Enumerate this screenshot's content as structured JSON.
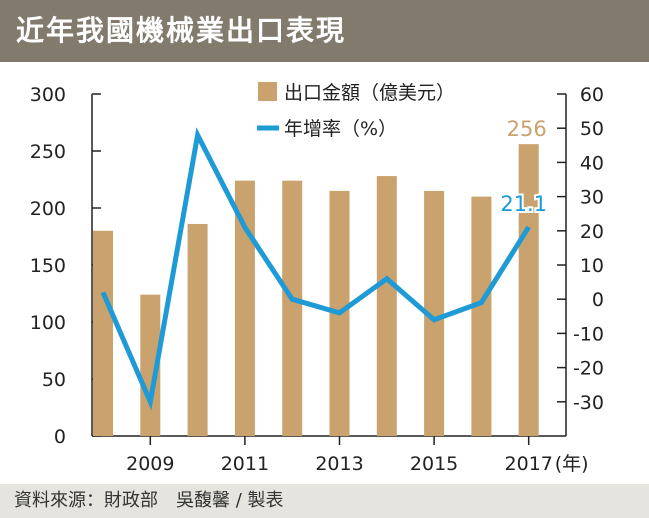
{
  "title": "近年我國機械業出口表現",
  "source": "資料來源：財政部　吳馥馨 / 製表",
  "colors": {
    "bar": "#c9a26e",
    "line": "#1e9ad6",
    "title_bg": "#837a6e",
    "footer_bg": "#e5e4df"
  },
  "chart_data": {
    "type": "bar+line",
    "x": [
      2008,
      2009,
      2010,
      2011,
      2012,
      2013,
      2014,
      2015,
      2016,
      2017
    ],
    "x_tick_labels": [
      "2009",
      "2011",
      "2013",
      "2015",
      "2017"
    ],
    "x_tick_values": [
      2009,
      2011,
      2013,
      2015,
      2017
    ],
    "x_unit": "(年)",
    "series": [
      {
        "name": "出口金額（億美元）",
        "type": "bar",
        "axis": "left",
        "values": [
          180,
          124,
          186,
          224,
          224,
          215,
          228,
          215,
          210,
          256
        ]
      },
      {
        "name": "年增率（%）",
        "type": "line",
        "axis": "right",
        "values": [
          2,
          -30,
          48,
          21,
          0,
          -4,
          6,
          -6,
          -1,
          21.1
        ]
      }
    ],
    "left_axis": {
      "range": [
        0,
        300
      ],
      "ticks": [
        "0",
        "50",
        "100",
        "150",
        "200",
        "250",
        "300"
      ]
    },
    "right_axis": {
      "range": [
        -40,
        60
      ],
      "ticks": [
        "-30",
        "-20",
        "-10",
        "0",
        "10",
        "20",
        "30",
        "40",
        "50",
        "60"
      ]
    },
    "annotations": [
      {
        "label": "256",
        "series": "出口金額（億美元）",
        "x": 2017
      },
      {
        "label": "21.1",
        "series": "年增率（%）",
        "x": 2017
      }
    ],
    "grid": false,
    "legend_position": "top"
  }
}
